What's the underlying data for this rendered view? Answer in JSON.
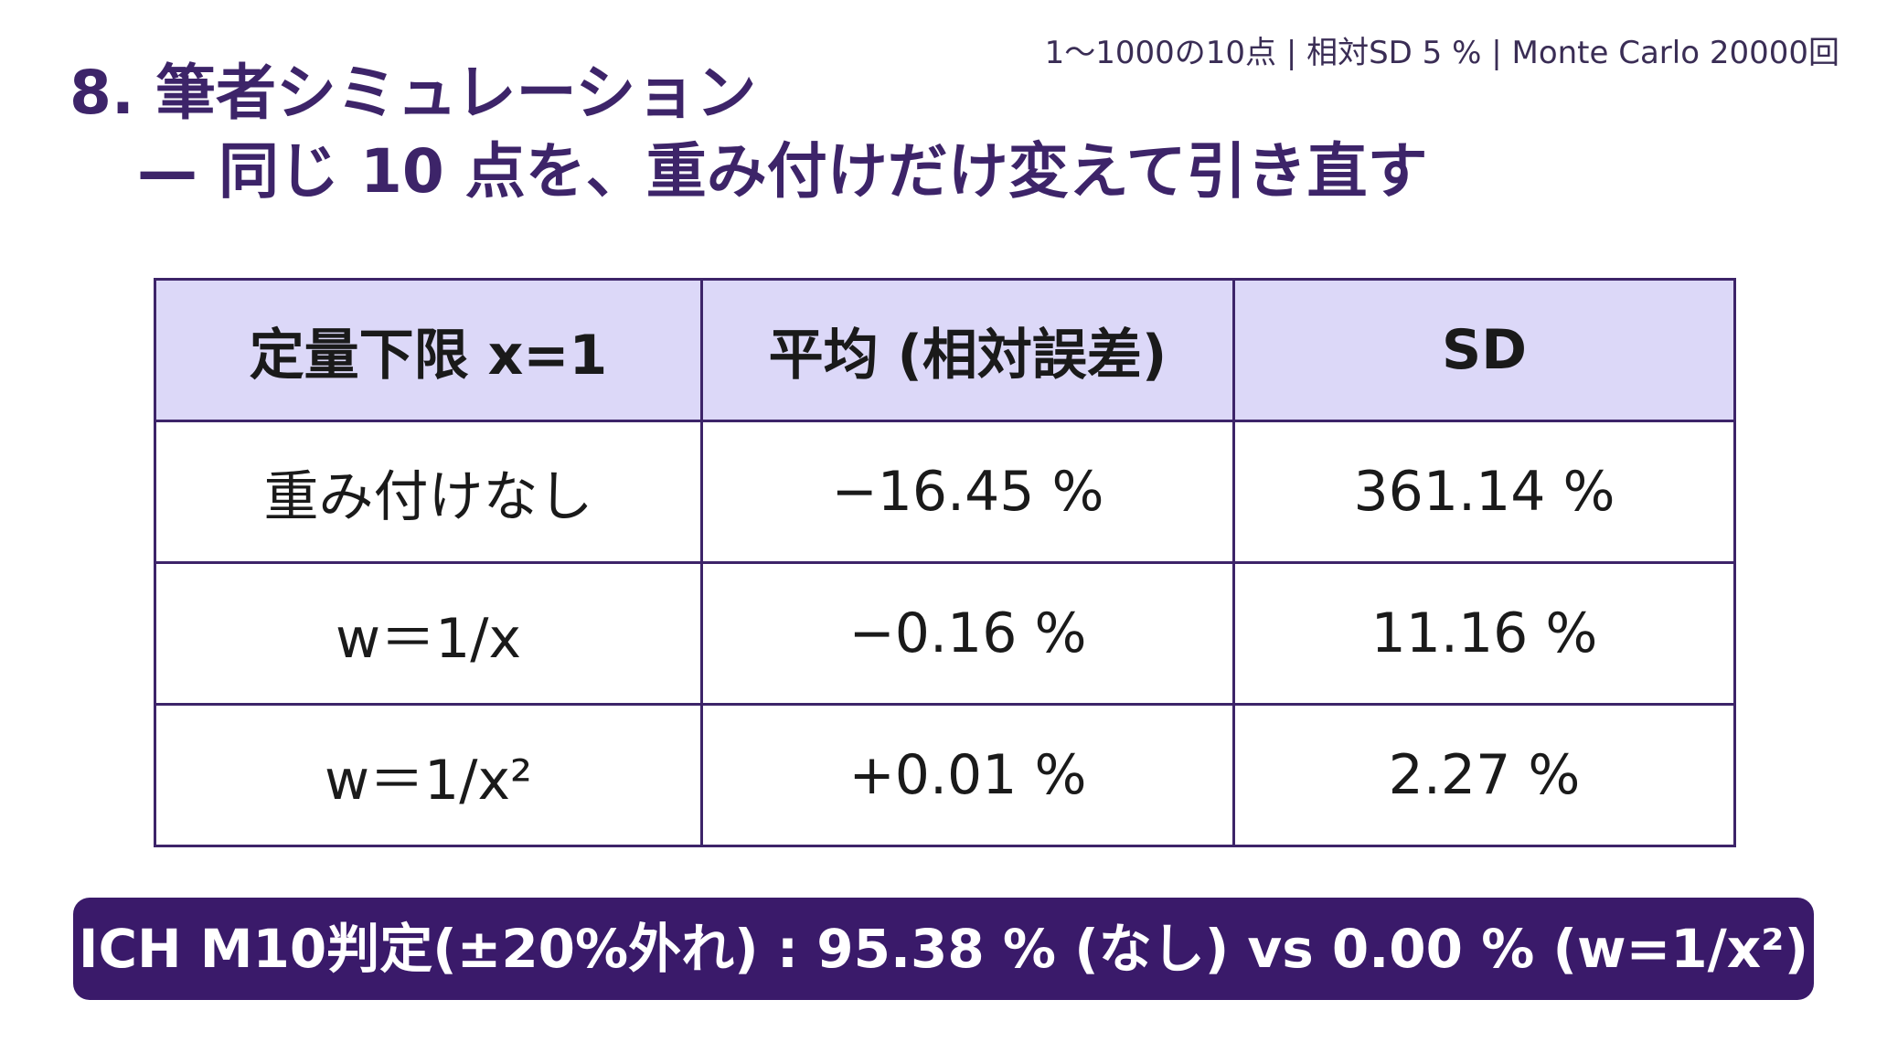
{
  "header": {
    "meta": "1〜1000の10点 | 相対SD 5 % | Monte Carlo 20000回",
    "title": "8. 筆者シミュレーション",
    "subtitle": "— 同じ 10 点を、重み付けだけ変えて引き直す"
  },
  "table": {
    "headers": [
      "定量下限 x=1",
      "平均 (相対誤差)",
      "SD"
    ],
    "rows": [
      [
        "重み付けなし",
        "−16.45 %",
        "361.14 %"
      ],
      [
        "w＝1/x",
        "−0.16 %",
        "11.16 %"
      ],
      [
        "w＝1/x²",
        "+0.01 %",
        "2.27 %"
      ]
    ]
  },
  "banner": {
    "text": "ICH M10判定(±20%外れ) : 95.38 % (なし) vs 0.00 % (w=1/x²)"
  },
  "colors": {
    "accent": "#3d2469",
    "header_bg": "#dcd8f8",
    "banner_bg": "#3a1a6a"
  }
}
